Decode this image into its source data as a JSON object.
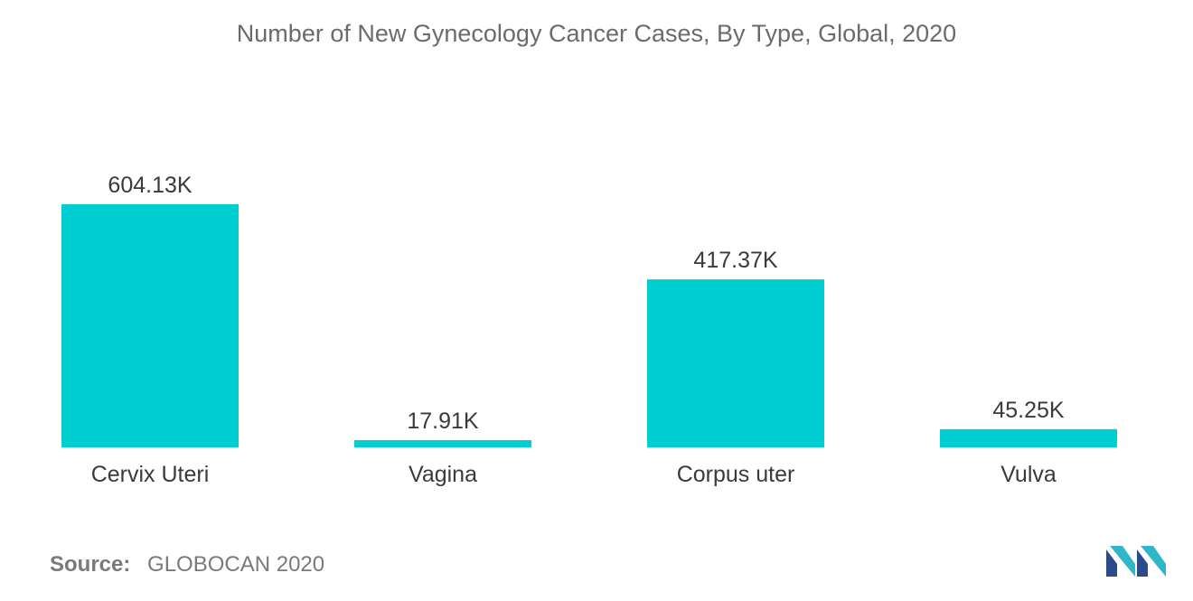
{
  "chart_data": {
    "type": "bar",
    "title": "Number of New Gynecology Cancer Cases, By Type, Global, 2020",
    "categories": [
      "Cervix Uteri",
      "Vagina",
      "Corpus uter",
      "Vulva"
    ],
    "values": [
      604.13,
      17.91,
      417.37,
      45.25
    ],
    "value_labels": [
      "604.13K",
      "17.91K",
      "417.37K",
      "45.25K"
    ],
    "units": "thousand cases",
    "xlabel": "",
    "ylabel": "",
    "ylim": [
      0,
      604.13
    ],
    "grid": false,
    "bar_color": "#00ced1"
  },
  "source": {
    "label": "Source:",
    "value": "GLOBOCAN 2020"
  },
  "logo": {
    "icon": "mordor-intelligence-logo-icon",
    "colors": [
      "#2b4a8c",
      "#2fb6c9"
    ]
  }
}
